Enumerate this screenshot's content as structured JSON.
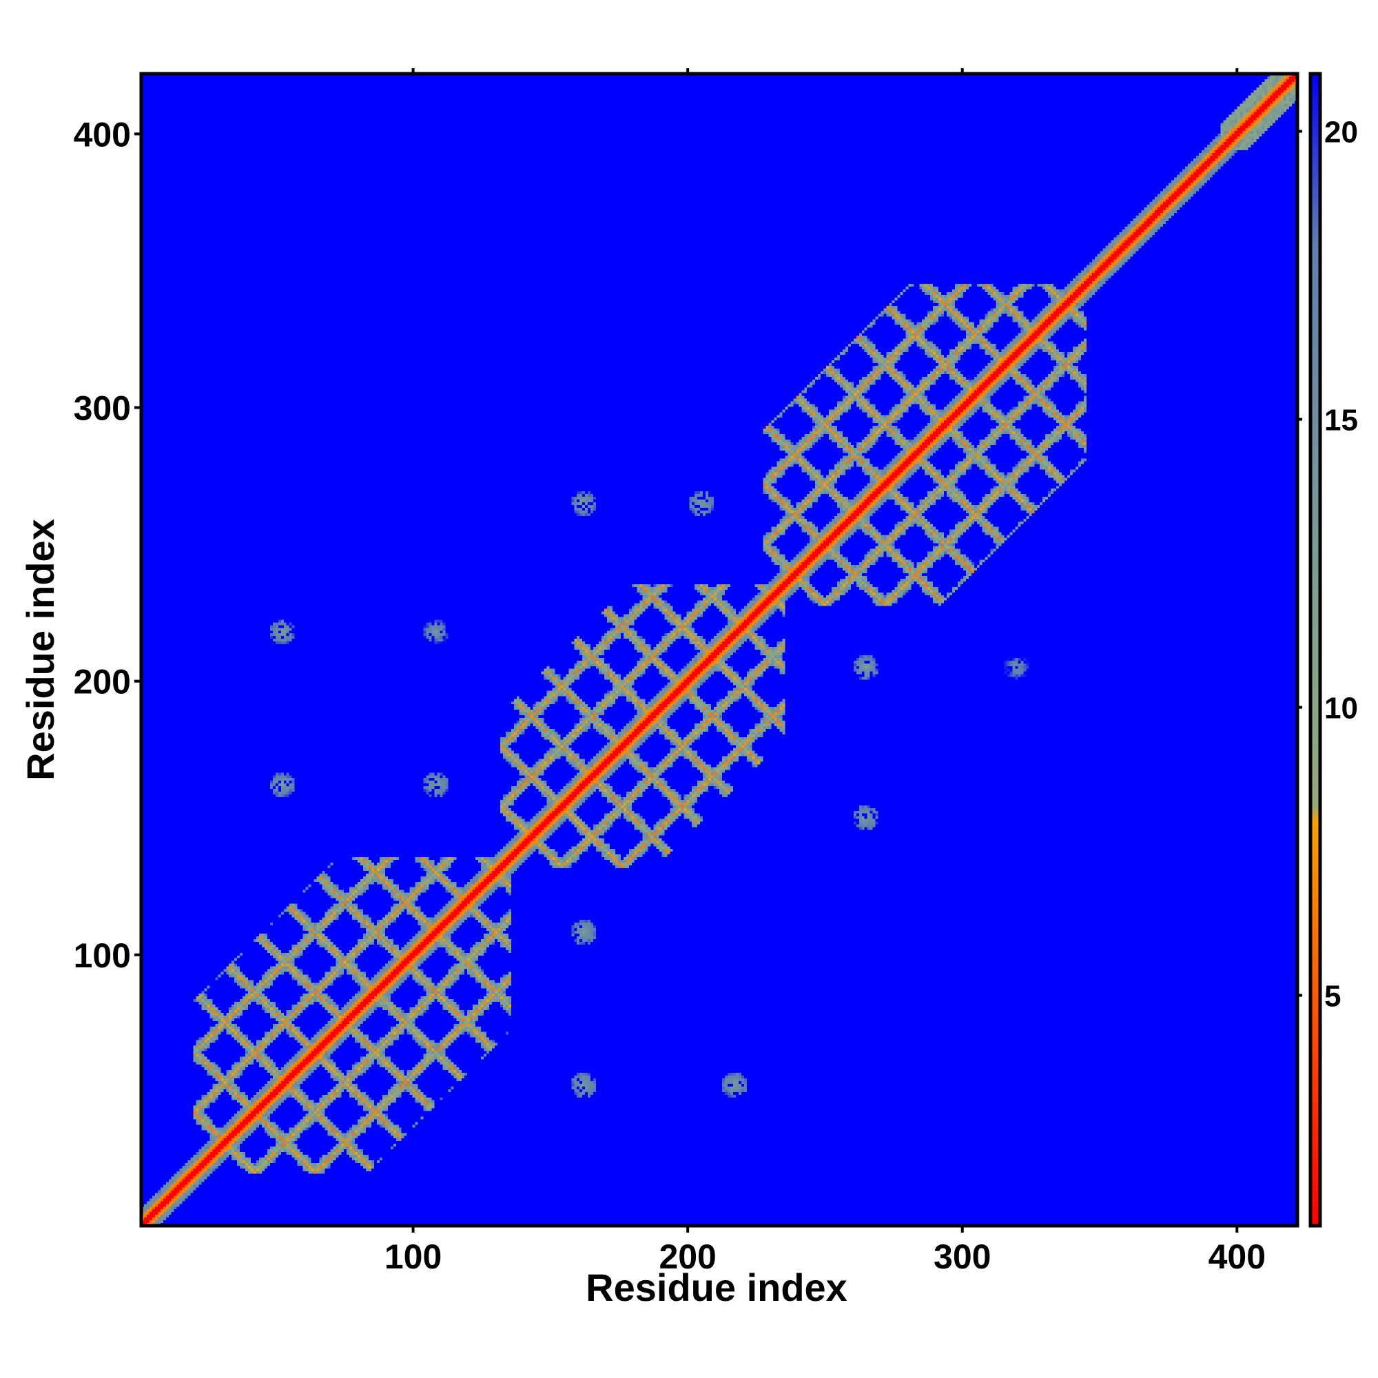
{
  "chart_data": {
    "type": "heatmap",
    "title": "",
    "xlabel": "Residue index",
    "ylabel": "Residue index",
    "xlim": [
      1,
      422
    ],
    "ylim": [
      1,
      422
    ],
    "xticks": [
      100,
      200,
      300,
      400
    ],
    "yticks": [
      100,
      200,
      300,
      400
    ],
    "grid": false,
    "legend": "colorbar-right",
    "colorbar": {
      "ticks": [
        5,
        10,
        15,
        20
      ],
      "range": [
        1,
        21
      ],
      "stops": [
        {
          "value": 1,
          "color": "#ff0000"
        },
        {
          "value": 5,
          "color": "#ff5a00"
        },
        {
          "value": 8,
          "color": "#ffa000"
        },
        {
          "value": 8.3,
          "color": "#94a97a"
        },
        {
          "value": 12,
          "color": "#7f9f92"
        },
        {
          "value": 18,
          "color": "#5f7fb0"
        },
        {
          "value": 21,
          "color": "#0000ff"
        }
      ]
    },
    "background_value": 21,
    "domains": [
      {
        "start": 20,
        "end": 135,
        "diag_width": 3,
        "helix_period": 22
      },
      {
        "start": 132,
        "end": 235,
        "diag_width": 3,
        "helix_period": 22
      },
      {
        "start": 228,
        "end": 345,
        "diag_width": 3,
        "helix_period": 22
      },
      {
        "start": 395,
        "end": 422,
        "diag_width": 3,
        "helix_period": 0
      }
    ],
    "offdiagonal_blobs": [
      {
        "x": 52,
        "y": 218,
        "value": 12
      },
      {
        "x": 108,
        "y": 218,
        "value": 13
      },
      {
        "x": 52,
        "y": 162,
        "value": 12
      },
      {
        "x": 108,
        "y": 162,
        "value": 12
      },
      {
        "x": 162,
        "y": 265,
        "value": 12
      },
      {
        "x": 205,
        "y": 265,
        "value": 12
      },
      {
        "x": 265,
        "y": 205,
        "value": 12
      },
      {
        "x": 265,
        "y": 150,
        "value": 12
      },
      {
        "x": 162,
        "y": 108,
        "value": 12
      },
      {
        "x": 162,
        "y": 52,
        "value": 12
      },
      {
        "x": 217,
        "y": 52,
        "value": 12
      },
      {
        "x": 320,
        "y": 205,
        "value": 14
      }
    ]
  }
}
